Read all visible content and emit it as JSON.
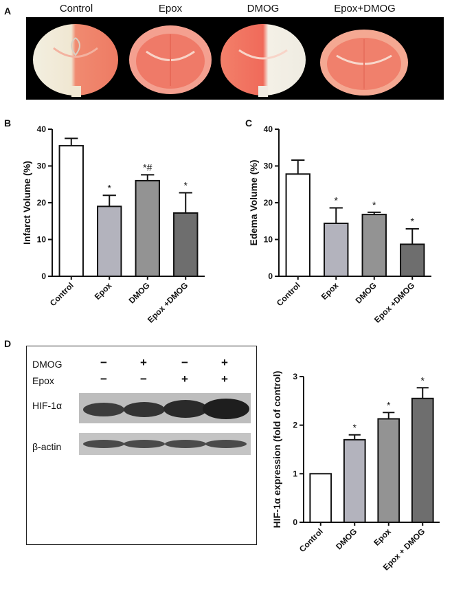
{
  "panels": {
    "a": "A",
    "b": "B",
    "c": "C",
    "d": "D"
  },
  "panelA": {
    "labels": [
      "Control",
      "Epox",
      "DMOG",
      "Epox+DMOG"
    ]
  },
  "panelD_blot": {
    "row_labels": [
      "DMOG",
      "Epox"
    ],
    "signs": [
      [
        "−",
        "+",
        "−",
        "+"
      ],
      [
        "−",
        "−",
        "+",
        "+"
      ]
    ],
    "bands": [
      "HIF-1α",
      "β-actin"
    ]
  },
  "chart_data": [
    {
      "type": "bar",
      "panel": "B",
      "categories": [
        "Control",
        "Epox",
        "DMOG",
        "Epox +DMOG"
      ],
      "values": [
        35.5,
        19.0,
        26.0,
        17.2
      ],
      "errors": [
        2.0,
        3.0,
        1.6,
        5.5
      ],
      "significance": [
        "",
        "*",
        "*#",
        "*"
      ],
      "colors": [
        "#ffffff",
        "#b3b3bd",
        "#939393",
        "#6e6e6e"
      ],
      "ylabel": "Infarct Volume (%)",
      "ylim": [
        0,
        40
      ],
      "yticks": [
        0,
        10,
        20,
        30,
        40
      ]
    },
    {
      "type": "bar",
      "panel": "C",
      "categories": [
        "Control",
        "Epox",
        "DMOG",
        "Epox +DMOG"
      ],
      "values": [
        27.8,
        14.4,
        16.8,
        8.7
      ],
      "errors": [
        3.8,
        4.2,
        0.6,
        4.2
      ],
      "significance": [
        "",
        "*",
        "*",
        "*"
      ],
      "colors": [
        "#ffffff",
        "#b3b3bd",
        "#939393",
        "#6e6e6e"
      ],
      "ylabel": "Edema Volume (%)",
      "ylim": [
        0,
        40
      ],
      "yticks": [
        0,
        10,
        20,
        30,
        40
      ]
    },
    {
      "type": "bar",
      "panel": "D",
      "categories": [
        "Control",
        "DMOG",
        "Epox",
        "Epox + DMOG"
      ],
      "values": [
        1.0,
        1.7,
        2.13,
        2.55
      ],
      "errors": [
        0,
        0.1,
        0.13,
        0.22
      ],
      "significance": [
        "",
        "*",
        "*",
        "*"
      ],
      "colors": [
        "#ffffff",
        "#b3b3bd",
        "#939393",
        "#6e6e6e"
      ],
      "ylabel": "HIF-1α expression (fold of control)",
      "ylim": [
        0,
        3
      ],
      "yticks": [
        0,
        1,
        2,
        3
      ]
    }
  ]
}
